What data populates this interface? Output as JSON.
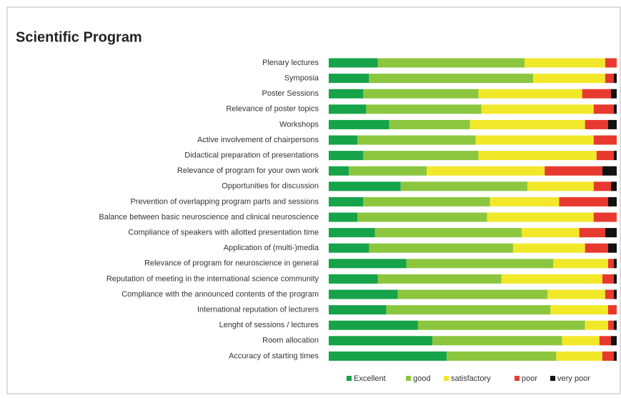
{
  "chart_data": {
    "type": "stacked-bar-horizontal",
    "title": "Scientific Program",
    "categories": [
      "Plenary lectures",
      "Symposia",
      "Poster Sessions",
      "Relevance of poster topics",
      "Workshops",
      "Active involvement of chairpersons",
      "Didactical preparation of presentations",
      "Relevance of program for your own work",
      "Opportunities for discussion",
      "Prevention of overlapping program parts and sessions",
      "Balance between basic neuroscience and clinical neuroscience",
      "Compliance of speakers with allotted presentation time",
      "Application of (multi-)media",
      "Relevance of program for neuroscience in general",
      "Reputation of meeting in the international science community",
      "Compliance with the announced contents of the program",
      "International reputation of lecturers",
      "Lenght of sessions / lectures",
      "Room allocation",
      "Accuracy of starting times"
    ],
    "series": [
      {
        "name": "Excellent",
        "color": "#16a34a",
        "values": [
          17,
          14,
          12,
          13,
          21,
          10,
          12,
          7,
          25,
          12,
          10,
          16,
          14,
          27,
          17,
          24,
          20,
          31,
          36,
          41
        ]
      },
      {
        "name": "good",
        "color": "#8cc63f",
        "values": [
          51,
          57,
          40,
          40,
          28,
          41,
          40,
          27,
          44,
          44,
          45,
          51,
          50,
          51,
          43,
          52,
          57,
          58,
          45,
          38
        ]
      },
      {
        "name": "satisfactory",
        "color": "#f2e82a",
        "values": [
          28,
          25,
          36,
          39,
          40,
          41,
          41,
          41,
          23,
          24,
          37,
          20,
          25,
          19,
          35,
          20,
          20,
          8,
          13,
          16
        ]
      },
      {
        "name": "poor",
        "color": "#e8392f",
        "values": [
          4,
          3,
          10,
          7,
          8,
          8,
          6,
          20,
          6,
          17,
          8,
          9,
          8,
          2,
          4,
          3,
          3,
          2,
          4,
          4
        ]
      },
      {
        "name": "very poor",
        "color": "#111111",
        "values": [
          0,
          1,
          2,
          1,
          3,
          0,
          1,
          5,
          2,
          3,
          0,
          4,
          3,
          1,
          1,
          1,
          0,
          1,
          2,
          1
        ]
      }
    ],
    "xlim": [
      0,
      100
    ]
  }
}
